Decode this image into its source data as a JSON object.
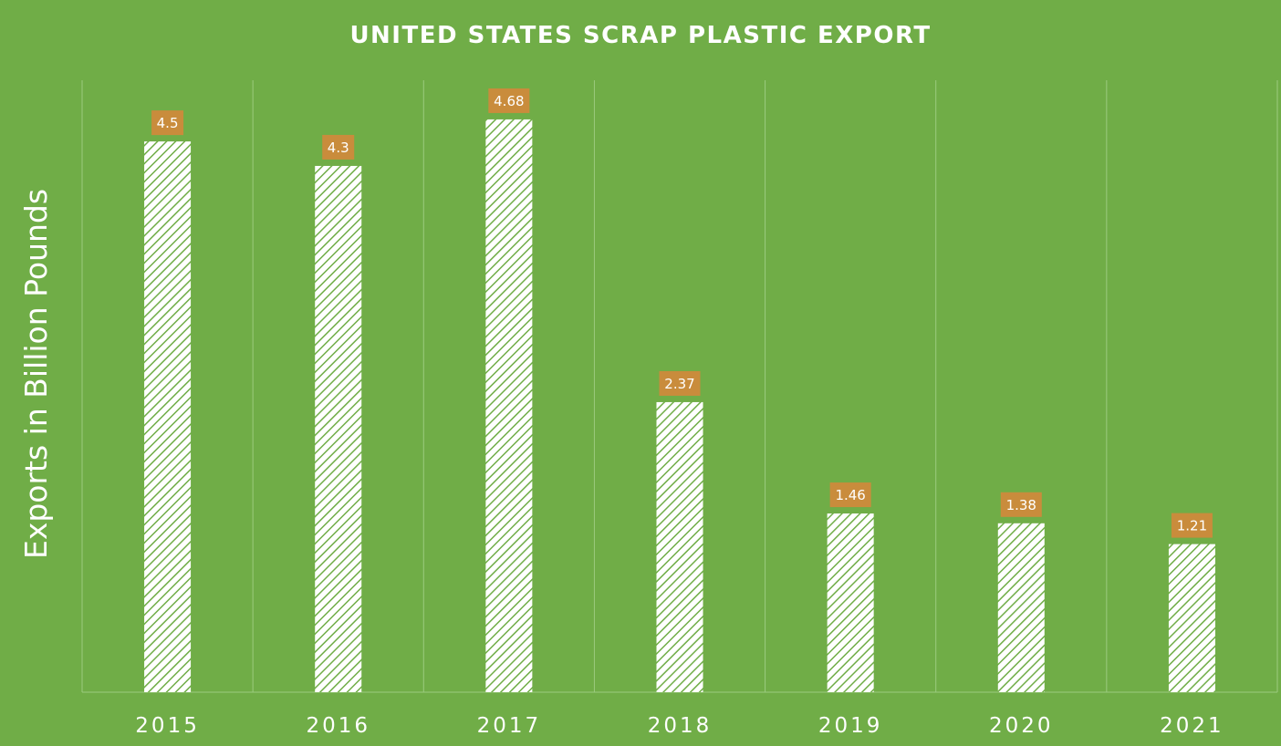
{
  "chart_data": {
    "type": "bar",
    "title": "UNITED STATES SCRAP PLASTIC EXPORT",
    "xlabel": "",
    "ylabel": "Exports in Billion Pounds",
    "categories": [
      "2015",
      "2016",
      "2017",
      "2018",
      "2019",
      "2020",
      "2021"
    ],
    "values": [
      4.5,
      4.3,
      4.68,
      2.37,
      1.46,
      1.38,
      1.21
    ],
    "data_labels": [
      "4.5",
      "4.3",
      "4.68",
      "2.37",
      "1.46",
      "1.38",
      "1.21"
    ],
    "ylim": [
      0,
      5
    ],
    "grid": "vertical",
    "legend": "none",
    "colors": {
      "background": "#70AD47",
      "bar_fill": "#ffffff",
      "bar_hatch": "#70AD47",
      "label_box": "#C98C3C",
      "text": "#ffffff",
      "grid": "#9BCB7F"
    }
  }
}
